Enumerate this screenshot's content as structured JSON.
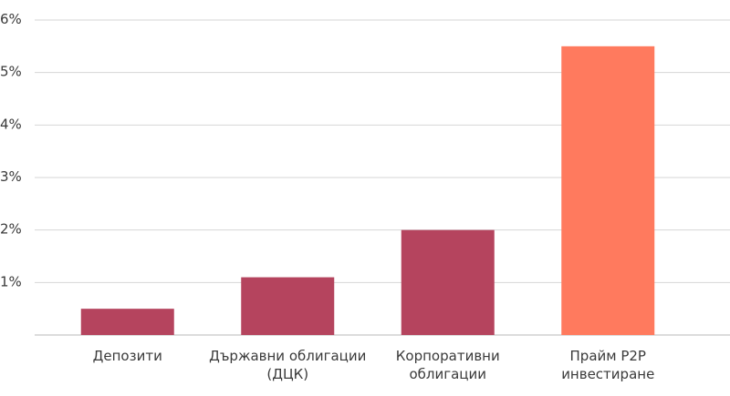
{
  "chart_data": {
    "type": "bar",
    "categories": [
      [
        "Депозити"
      ],
      [
        "Държавни облигации",
        "(ДЦК)"
      ],
      [
        "Корпоративни",
        "облигации"
      ],
      [
        "Прайм P2P",
        "инвестиране"
      ]
    ],
    "values": [
      0.5,
      1.1,
      2.0,
      5.5
    ],
    "bar_colors": [
      "#b5445e",
      "#b5445e",
      "#b5445e",
      "#ff7a5e"
    ],
    "y_tick_labels": [
      "",
      "1%",
      "2%",
      "3%",
      "4%",
      "5%",
      "6%"
    ],
    "ylim": [
      0,
      6
    ],
    "grid": true,
    "title": "",
    "xlabel": "",
    "ylabel": ""
  }
}
